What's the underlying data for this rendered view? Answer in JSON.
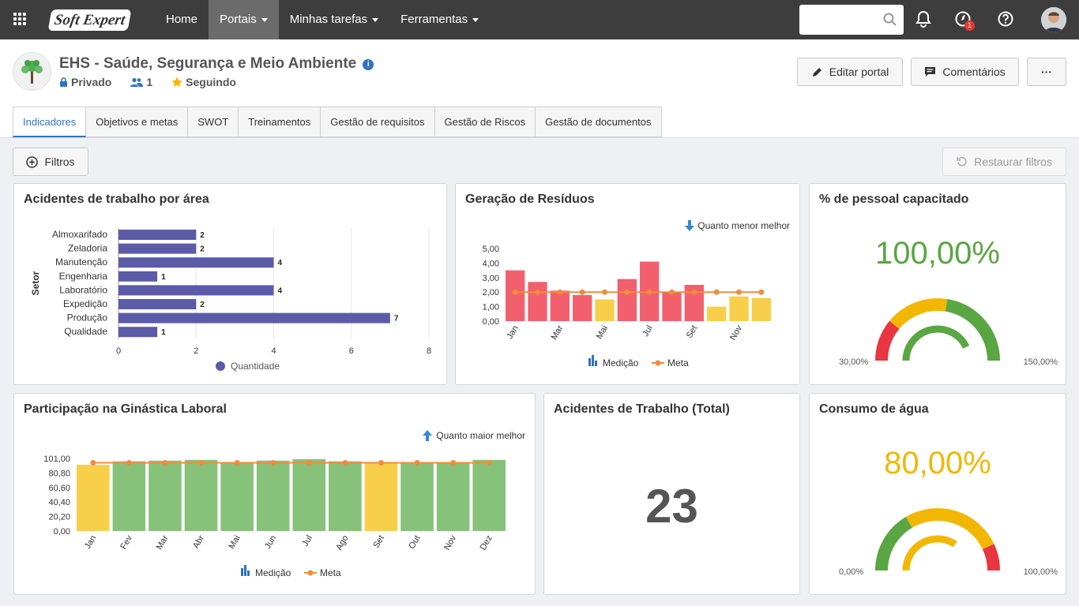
{
  "topbar": {
    "logo": "Soft Expert",
    "nav": [
      "Home",
      "Portais",
      "Minhas tarefas",
      "Ferramentas"
    ],
    "badge": "1"
  },
  "portal": {
    "title": "EHS - Saúde, Segurança e Meio Ambiente",
    "privacy": "Privado",
    "members": "1",
    "following": "Seguindo"
  },
  "actions": {
    "edit": "Editar portal",
    "comments": "Comentários",
    "more": "···"
  },
  "tabs": [
    "Indicadores",
    "Objetivos e metas",
    "SWOT",
    "Treinamentos",
    "Gestão de requisitos",
    "Gestão de Riscos",
    "Gestão de documentos"
  ],
  "toolbar": {
    "filters": "Filtros",
    "restore": "Restaurar filtros"
  },
  "colors": {
    "accent": "#2f74c0",
    "bar": "#5b5ba8",
    "red": "#f2606e",
    "yellow": "#f7cf4b",
    "green": "#86c27a",
    "meta": "#f08c3c",
    "gauge_red": "#e8353f",
    "gauge_yellow": "#f2b705",
    "gauge_green": "#5aa642"
  },
  "cards": {
    "acidentes_area": {
      "title": "Acidentes de trabalho por área",
      "legend": "Quantidade"
    },
    "residuos": {
      "title": "Geração de Resíduos",
      "hint": "Quanto menor melhor",
      "legend_med": "Medição",
      "legend_meta": "Meta"
    },
    "capacitado": {
      "title": "% de pessoal capacitado",
      "value": "100,00%",
      "min": "30,00%",
      "max": "150,00%",
      "level": 1.0
    },
    "ginastica": {
      "title": "Participação na Ginástica Laboral",
      "hint": "Quanto maior melhor",
      "legend_med": "Medição",
      "legend_meta": "Meta"
    },
    "acidentes_total": {
      "title": "Acidentes de Trabalho (Total)",
      "value": "23"
    },
    "agua": {
      "title": "Consumo de água",
      "value": "80,00%",
      "min": "0,00%",
      "max": "100,00%",
      "level": 0.8
    }
  },
  "chart_data": [
    {
      "type": "bar",
      "orientation": "horizontal",
      "ylabel": "Setor",
      "categories": [
        "Almoxarifado",
        "Zeladoria",
        "Manutenção",
        "Engenharia",
        "Laboratório",
        "Expedição",
        "Produção",
        "Qualidade"
      ],
      "values": [
        2,
        2,
        4,
        1,
        4,
        2,
        7,
        1
      ],
      "xlim": [
        0,
        8
      ],
      "xticks": [
        "0",
        "2",
        "4",
        "6",
        "8"
      ],
      "series_name": "Quantidade"
    },
    {
      "type": "bar",
      "categories": [
        "Jan",
        "Fev",
        "Mar",
        "Abr",
        "Mai",
        "Jun",
        "Jul",
        "Ago",
        "Set",
        "Out",
        "Nov",
        "Dez"
      ],
      "x_ticks": [
        "Jan",
        "Mar",
        "Mai",
        "Jul",
        "Set",
        "Nov"
      ],
      "ylim": [
        0,
        5
      ],
      "yticks": [
        "5,00",
        "4,00",
        "3,00",
        "2,00",
        "1,00",
        "0,00"
      ],
      "values": [
        3.5,
        2.7,
        2.1,
        1.8,
        1.5,
        2.9,
        4.1,
        2.0,
        2.5,
        1.0,
        1.7,
        1.6
      ],
      "meta": 2.0,
      "status": [
        "red",
        "red",
        "red",
        "red",
        "yellow",
        "red",
        "red",
        "red",
        "red",
        "yellow",
        "yellow",
        "yellow"
      ]
    },
    {
      "type": "bar",
      "categories": [
        "Jan",
        "Fev",
        "Mar",
        "Abr",
        "Mai",
        "Jun",
        "Jul",
        "Ago",
        "Set",
        "Out",
        "Nov",
        "Dez"
      ],
      "ylim": [
        0,
        101
      ],
      "yticks": [
        "101,00",
        "80,80",
        "60,60",
        "40,40",
        "20,20",
        "0,00"
      ],
      "values": [
        92,
        97,
        98,
        99,
        96,
        98,
        100,
        97,
        95,
        96,
        96,
        99
      ],
      "meta": 95,
      "status": [
        "yellow",
        "green",
        "green",
        "green",
        "green",
        "green",
        "green",
        "green",
        "yellow",
        "green",
        "green",
        "green"
      ]
    }
  ]
}
